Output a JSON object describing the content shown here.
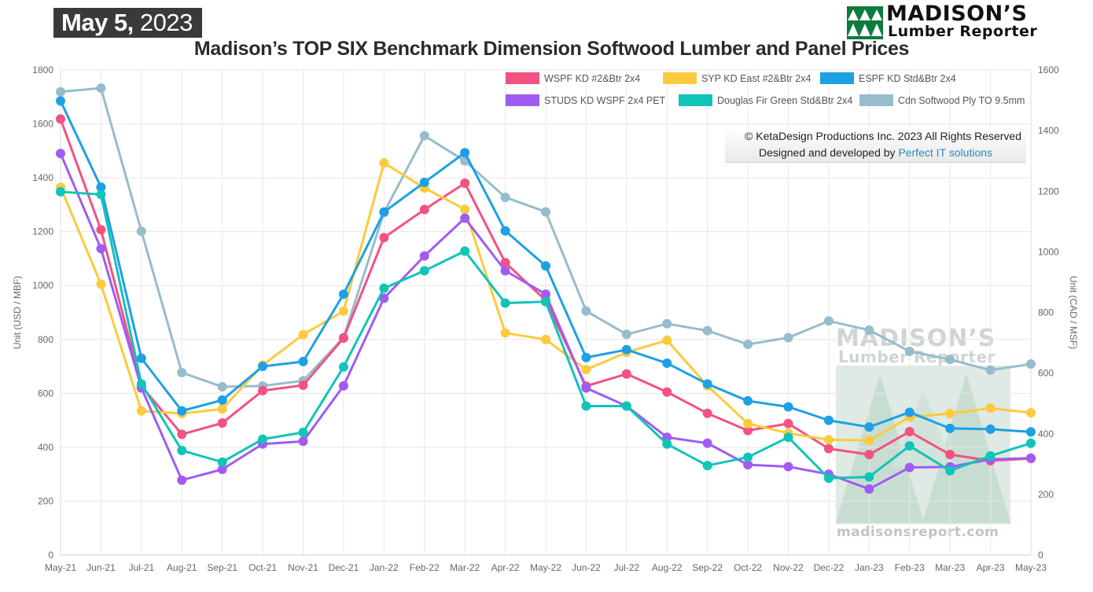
{
  "header": {
    "date_day": "May 5,",
    "date_year": "2023",
    "title": "Madison’s TOP SIX Benchmark Dimension Softwood Lumber and Panel Prices"
  },
  "logo": {
    "line1": "MADISON’S",
    "line2": "Lumber Reporter"
  },
  "copyright": {
    "line1": "© KetaDesign Productions Inc. 2023 All Rights Reserved",
    "line2_prefix": "Designed and developed by ",
    "line2_link": "Perfect IT solutions"
  },
  "watermark": {
    "line1": "MADISON’S",
    "line2": "Lumber Reporter",
    "url": "madisonsreport.com"
  },
  "chart_data": {
    "type": "line",
    "title": "Madison’s TOP SIX Benchmark Dimension Softwood Lumber and Panel Prices",
    "x": [
      "May-21",
      "Jun-21",
      "Jul-21",
      "Aug-21",
      "Sep-21",
      "Oct-21",
      "Nov-21",
      "Dec-21",
      "Jan-22",
      "Feb-22",
      "Mar-22",
      "Apr-22",
      "May-22",
      "Jun-22",
      "Jul-22",
      "Aug-22",
      "Sep-22",
      "Oct-22",
      "Nov-22",
      "Dec-22",
      "Jan-23",
      "Feb-23",
      "Mar-23",
      "Apr-23",
      "May-23"
    ],
    "ylabel_left": "Unit (USD / MBF)",
    "ylabel_right": "Unit (CAD / MSF)",
    "ylim_left": [
      0,
      1800
    ],
    "ylim_right": [
      0,
      1600
    ],
    "yticks_left": [
      0,
      200,
      400,
      600,
      800,
      1000,
      1200,
      1400,
      1600,
      1800
    ],
    "yticks_right": [
      0,
      200,
      400,
      600,
      800,
      1000,
      1200,
      1400,
      1600
    ],
    "grid": true,
    "legend_position": "top-right",
    "series": [
      {
        "name": "WSPF KD #2&Btr 2x4",
        "axis": "left",
        "color": "#f25282",
        "values": [
          1618,
          1207,
          627,
          448,
          490,
          610,
          630,
          805,
          1178,
          1282,
          1380,
          1085,
          945,
          627,
          672,
          605,
          526,
          462,
          488,
          395,
          373,
          458,
          373,
          350,
          358
        ]
      },
      {
        "name": "SYP KD East #2&Btr 2x4",
        "axis": "left",
        "color": "#fbcb3d",
        "values": [
          1365,
          1005,
          535,
          525,
          542,
          705,
          818,
          905,
          1455,
          1362,
          1283,
          824,
          800,
          688,
          752,
          797,
          628,
          488,
          452,
          428,
          425,
          512,
          525,
          545,
          528
        ]
      },
      {
        "name": "ESPF KD Std&Btr 2x4",
        "axis": "left",
        "color": "#1ea0e4",
        "values": [
          1685,
          1365,
          730,
          535,
          575,
          700,
          718,
          968,
          1273,
          1383,
          1493,
          1203,
          1073,
          733,
          762,
          712,
          635,
          572,
          550,
          500,
          475,
          530,
          470,
          467,
          457
        ]
      },
      {
        "name": "STUDS KD WSPF 2x4 PET",
        "axis": "left",
        "color": "#a05cf2",
        "values": [
          1490,
          1137,
          620,
          278,
          318,
          412,
          422,
          628,
          953,
          1110,
          1250,
          1055,
          968,
          620,
          553,
          437,
          415,
          335,
          328,
          300,
          245,
          325,
          327,
          355,
          360
        ]
      },
      {
        "name": "Douglas Fir Green Std&Btr 2x4",
        "axis": "left",
        "color": "#11c4b8",
        "values": [
          1348,
          1338,
          635,
          388,
          345,
          430,
          455,
          698,
          990,
          1055,
          1128,
          935,
          940,
          553,
          553,
          412,
          332,
          363,
          437,
          285,
          290,
          405,
          313,
          368,
          415
        ]
      },
      {
        "name": "Cdn Softwood Ply TO 9.5mm",
        "axis": "right",
        "color": "#97bccc",
        "values": [
          1528,
          1540,
          1068,
          602,
          555,
          558,
          575,
          718,
          1130,
          1383,
          1300,
          1180,
          1132,
          805,
          728,
          763,
          740,
          695,
          717,
          772,
          742,
          672,
          645,
          610,
          630
        ]
      }
    ]
  }
}
